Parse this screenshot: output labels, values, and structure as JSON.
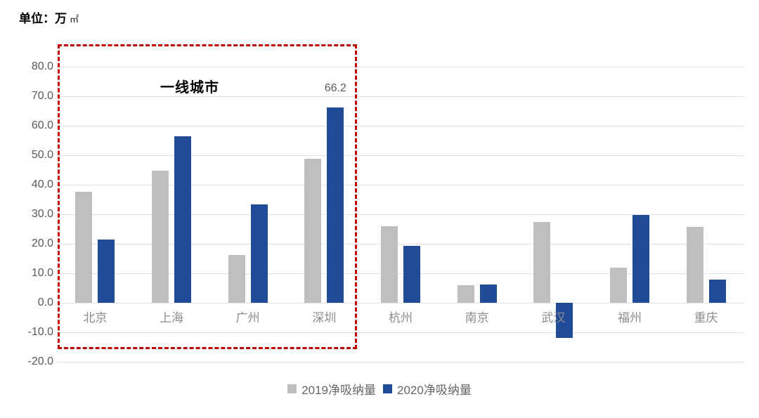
{
  "unit_label": {
    "prefix": "单位：万",
    "suffix": "㎡"
  },
  "chart_data": {
    "type": "bar",
    "title": "",
    "unit": "万㎡",
    "categories": [
      "北京",
      "上海",
      "广州",
      "深圳",
      "杭州",
      "南京",
      "武汉",
      "福州",
      "重庆"
    ],
    "series": [
      {
        "name": "2019净吸纳量",
        "color": "#BFBFBF",
        "values": [
          37.6,
          44.7,
          16.3,
          48.8,
          26.0,
          6.0,
          27.4,
          11.9,
          25.6
        ]
      },
      {
        "name": "2020净吸纳量",
        "color": "#1F4B99",
        "values": [
          21.5,
          56.5,
          33.4,
          66.2,
          19.4,
          6.1,
          -11.9,
          29.8,
          7.9
        ]
      }
    ],
    "yticks": [
      "80.0",
      "70.0",
      "60.0",
      "50.0",
      "40.0",
      "30.0",
      "20.0",
      "10.0",
      "0.0",
      "-10.0",
      "-20.0"
    ],
    "ylim": [
      -20,
      80
    ],
    "grid": true,
    "legend_position": "bottom",
    "data_labels": [
      {
        "series_index": 1,
        "category_index": 3,
        "text": "66.2"
      }
    ],
    "highlight_box": {
      "label": "一线城市",
      "categories": [
        "北京",
        "上海",
        "广州",
        "深圳"
      ],
      "color": "#C00000"
    }
  },
  "legend": {
    "items": [
      {
        "label": "2019净吸纳量",
        "color": "#BFBFBF"
      },
      {
        "label": "2020净吸纳量",
        "color": "#1F4B99"
      }
    ]
  },
  "colors": {
    "series_2019": "#BFBFBF",
    "series_2020": "#1F4B99",
    "highlight_box": "#C00000",
    "gridline": "#E2E2E2",
    "axis_text": "#595959",
    "category_text": "#8C8C8C"
  }
}
